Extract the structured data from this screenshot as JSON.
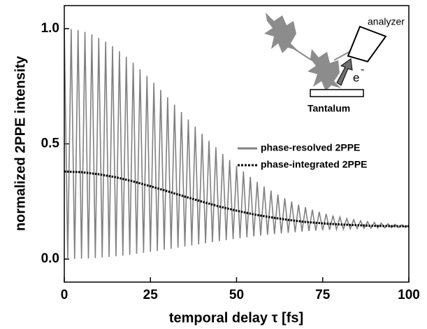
{
  "chart_data": {
    "type": "line",
    "x_label": "temporal delay τ [fs]",
    "y_label": "normalized 2PPE intensity",
    "xlim": [
      0,
      100
    ],
    "ylim": [
      -0.1,
      1.1
    ],
    "xticks": [
      0,
      25,
      50,
      75,
      100
    ],
    "yticks": [
      {
        "value": 0,
        "label": "0.0"
      },
      {
        "value": 0.5,
        "label": "0.5"
      },
      {
        "value": 1,
        "label": "1.0"
      }
    ],
    "annotations": [
      "analyzer",
      "e",
      "-",
      "Tantalum"
    ],
    "series": [
      {
        "name": "phase-resolved 2PPE",
        "color": "#808080",
        "style": "solid",
        "x": [
          0,
          1,
          2,
          3,
          4,
          5,
          6,
          7,
          8,
          9,
          10,
          11,
          12,
          13,
          14,
          15,
          16,
          17,
          18,
          19,
          20,
          21,
          22,
          23,
          24,
          25,
          26,
          27,
          28,
          29,
          30,
          31,
          32,
          33,
          34,
          35,
          36,
          37,
          38,
          39,
          40,
          41,
          42,
          43,
          44,
          45,
          46,
          47,
          48,
          49,
          50,
          51,
          52,
          53,
          54,
          55,
          56,
          57,
          58,
          59,
          60,
          61,
          62,
          63,
          64,
          65,
          66,
          67,
          68,
          69,
          70,
          71,
          72,
          73,
          74,
          75,
          76,
          77,
          78,
          79,
          80,
          81,
          82,
          83,
          84,
          85,
          86,
          87,
          88,
          89,
          90,
          91,
          92,
          93,
          94,
          95,
          96,
          97,
          98,
          99,
          100
        ],
        "values": [
          1.0,
          0.0001,
          0.998,
          0.0005,
          0.994,
          0.0014,
          0.986,
          0.0027,
          0.975,
          0.0045,
          0.96,
          0.0066,
          0.943,
          0.0092,
          0.924,
          0.0121,
          0.902,
          0.0153,
          0.878,
          0.0188,
          0.852,
          0.0226,
          0.824,
          0.0267,
          0.795,
          0.031,
          0.765,
          0.0354,
          0.734,
          0.04,
          0.702,
          0.0447,
          0.67,
          0.0494,
          0.638,
          0.0542,
          0.606,
          0.059,
          0.575,
          0.0638,
          0.544,
          0.0685,
          0.513,
          0.0732,
          0.485,
          0.0777,
          0.456,
          0.0821,
          0.43,
          0.0864,
          0.404,
          0.0905,
          0.38,
          0.0945,
          0.357,
          0.0983,
          0.335,
          0.1018,
          0.315,
          0.1052,
          0.297,
          0.1084,
          0.28,
          0.1114,
          0.264,
          0.1142,
          0.25,
          0.1168,
          0.236,
          0.1192,
          0.225,
          0.1214,
          0.214,
          0.1234,
          0.205,
          0.1252,
          0.196,
          0.1269,
          0.189,
          0.1285,
          0.182,
          0.1298,
          0.176,
          0.1311,
          0.171,
          0.1322,
          0.166,
          0.1332,
          0.162,
          0.1341,
          0.159,
          0.1349,
          0.156,
          0.1356,
          0.153,
          0.1362,
          0.151,
          0.1368,
          0.149,
          0.1372,
          0.148
        ]
      },
      {
        "name": "phase-integrated 2PPE",
        "color": "#000000",
        "style": "dotted",
        "x": [
          0,
          5,
          10,
          15,
          20,
          25,
          30,
          35,
          40,
          45,
          50,
          55,
          60,
          65,
          70,
          75,
          80,
          85,
          90,
          95,
          100
        ],
        "values": [
          0.38,
          0.377,
          0.368,
          0.355,
          0.337,
          0.316,
          0.294,
          0.271,
          0.249,
          0.228,
          0.21,
          0.194,
          0.181,
          0.17,
          0.161,
          0.155,
          0.15,
          0.147,
          0.144,
          0.143,
          0.142
        ]
      }
    ]
  }
}
